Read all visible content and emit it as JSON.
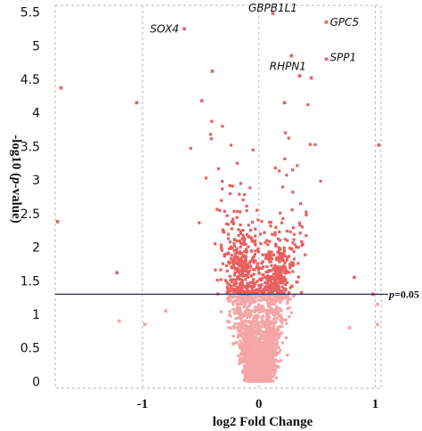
{
  "chart_data": {
    "type": "scatter",
    "title": "",
    "xlabel": "log2 Fold Change",
    "ylabel_parts": [
      "-log10 (",
      "p",
      "-value)"
    ],
    "xlim": [
      -1.75,
      1.05
    ],
    "ylim": [
      -0.1,
      5.6
    ],
    "x_ticks": [
      {
        "value": -1,
        "label": "-1"
      },
      {
        "value": 0,
        "label": "0"
      },
      {
        "value": 1,
        "label": "1"
      }
    ],
    "y_ticks": [
      {
        "value": 0,
        "label": "0"
      },
      {
        "value": 0.5,
        "label": "0.5"
      },
      {
        "value": 1,
        "label": "1"
      },
      {
        "value": 1.5,
        "label": "1.5"
      },
      {
        "value": 2,
        "label": "2"
      },
      {
        "value": 2.5,
        "label": "2.5"
      },
      {
        "value": 3,
        "label": "3"
      },
      {
        "value": 3.5,
        "label": "3.5"
      },
      {
        "value": 4,
        "label": "4"
      },
      {
        "value": 4.5,
        "label": "4.5"
      },
      {
        "value": 5,
        "label": "5"
      },
      {
        "value": 5.5,
        "label": "5.5"
      }
    ],
    "grid": "dashed",
    "threshold": {
      "y": 1.3,
      "label_parts": [
        "p",
        "=0.05"
      ]
    },
    "colors": {
      "significant": "#e8605f",
      "non_significant": "#f4a6a6",
      "threshold_line": "#2a2a5a",
      "grid": "#b8b8b8"
    },
    "labeled_genes": [
      {
        "name": "GBPB1L1",
        "x": 0.12,
        "y": 5.48
      },
      {
        "name": "SOX4",
        "x": -0.64,
        "y": 5.25
      },
      {
        "name": "GPC5",
        "x": 0.58,
        "y": 5.35
      },
      {
        "name": "SPP1",
        "x": 0.58,
        "y": 4.8
      },
      {
        "name": "RHPN1",
        "x": 0.28,
        "y": 4.85
      }
    ],
    "outliers": [
      {
        "x": -1.7,
        "y": 4.37
      },
      {
        "x": -1.05,
        "y": 4.15
      },
      {
        "x": -1.73,
        "y": 2.38
      },
      {
        "x": -1.22,
        "y": 1.62
      },
      {
        "x": 0.45,
        "y": 4.52
      },
      {
        "x": 1.03,
        "y": 3.52
      },
      {
        "x": -0.49,
        "y": 4.18
      },
      {
        "x": -0.4,
        "y": 4.62
      },
      {
        "x": 0.35,
        "y": 4.55
      },
      {
        "x": 0.22,
        "y": 4.15
      },
      {
        "x": 1.02,
        "y": 1.15
      },
      {
        "x": 1.02,
        "y": 0.85
      },
      {
        "x": 0.98,
        "y": 1.3
      },
      {
        "x": -0.98,
        "y": 0.85
      },
      {
        "x": -1.2,
        "y": 0.9
      },
      {
        "x": 0.78,
        "y": 0.8
      },
      {
        "x": 0.82,
        "y": 1.55
      },
      {
        "x": -0.8,
        "y": 1.05
      }
    ],
    "point_cloud": {
      "count": 2600,
      "shape": "volcano (V-shaped, dense near x=0 at low y, two lobes at x≈±0.15 around y≈1.5–2.2)",
      "x_range": [
        -0.7,
        0.75
      ],
      "y_range": [
        0,
        4.2
      ]
    }
  }
}
